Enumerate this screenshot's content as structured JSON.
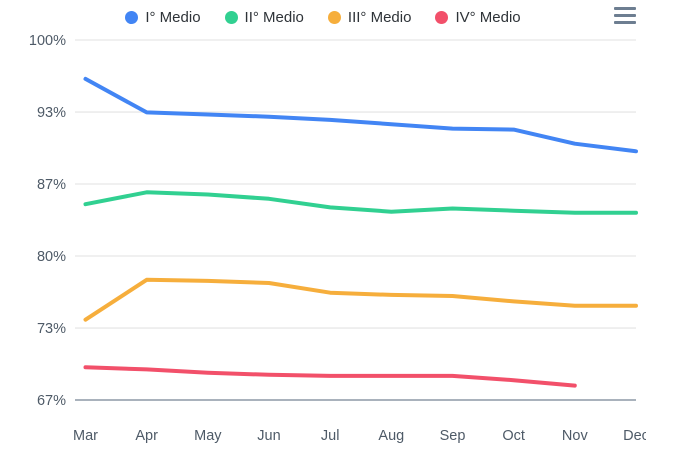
{
  "colors": {
    "series_blue": "#4285f4",
    "series_green": "#31d091",
    "series_orange": "#f6ae3c",
    "series_red": "#f2506a",
    "gridline": "#e8e8e8",
    "axis_line": "#a9b2bc",
    "axis_text": "#4e5a67",
    "legend_text": "#2e3338",
    "menu_icon": "#6d7e91"
  },
  "menu": {
    "icon": "hamburger-menu"
  },
  "chart_data": {
    "type": "line",
    "title": "",
    "xlabel": "",
    "ylabel": "",
    "legend_position": "top-center",
    "grid": true,
    "categories": [
      "Mar",
      "Apr",
      "May",
      "Jun",
      "Jul",
      "Aug",
      "Sep",
      "Oct",
      "Nov",
      "Dec"
    ],
    "series": [
      {
        "name": "I° Medio",
        "color": "#4285f4",
        "values": [
          96.4,
          93.3,
          93.1,
          92.9,
          92.6,
          92.2,
          91.8,
          91.7,
          90.4,
          89.7
        ]
      },
      {
        "name": "II° Medio",
        "color": "#31d091",
        "values": [
          84.8,
          85.9,
          85.7,
          85.3,
          84.5,
          84.1,
          84.4,
          84.2,
          84.0,
          84.0
        ]
      },
      {
        "name": "III° Medio",
        "color": "#f6ae3c",
        "values": [
          74.1,
          77.8,
          77.7,
          77.5,
          76.6,
          76.4,
          76.3,
          75.8,
          75.4,
          75.4
        ]
      },
      {
        "name": "IV° Medio",
        "color": "#f2506a",
        "values": [
          69.7,
          69.5,
          69.2,
          69.0,
          68.9,
          68.9,
          68.9,
          68.5,
          68.0,
          null
        ]
      }
    ],
    "y_axis": {
      "min": 66.67,
      "max": 100,
      "tick_values": [
        100,
        93.33,
        86.67,
        80,
        73.33,
        66.67
      ],
      "tick_labels": [
        "100%",
        "93%",
        "87%",
        "80%",
        "73%",
        "67%"
      ]
    }
  }
}
